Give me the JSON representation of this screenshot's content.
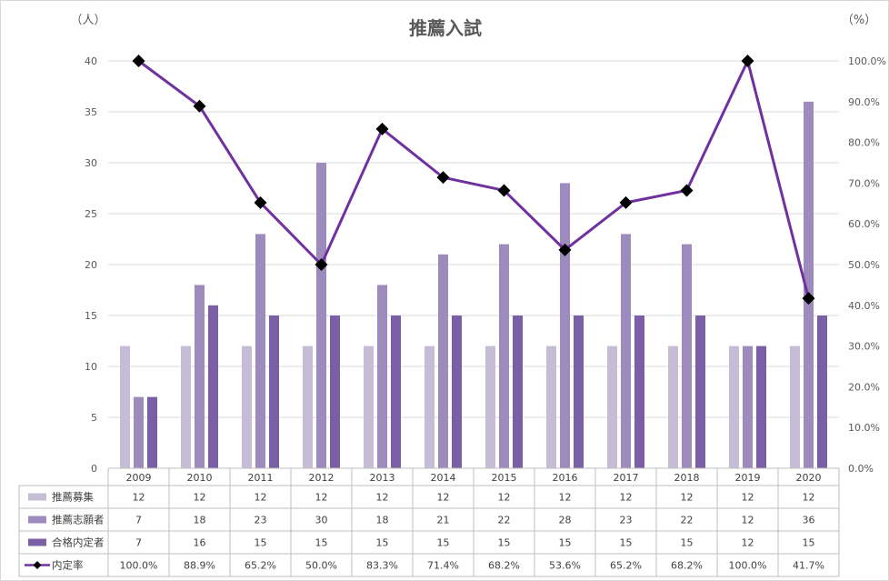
{
  "chart_data": {
    "type": "bar",
    "title": "推薦入試",
    "left_axis_unit": "（人）",
    "right_axis_unit": "（%）",
    "categories": [
      "2009",
      "2010",
      "2011",
      "2012",
      "2013",
      "2014",
      "2015",
      "2016",
      "2017",
      "2018",
      "2019",
      "2020"
    ],
    "ylim": [
      0,
      40
    ],
    "y_ticks": [
      "0",
      "5",
      "10",
      "15",
      "20",
      "25",
      "30",
      "35",
      "40"
    ],
    "y2lim": [
      0,
      100
    ],
    "y2_ticks": [
      "0.0%",
      "10.0%",
      "20.0%",
      "30.0%",
      "40.0%",
      "50.0%",
      "60.0%",
      "70.0%",
      "80.0%",
      "90.0%",
      "100.0%"
    ],
    "grid": true,
    "legend": "data-table",
    "series": [
      {
        "name": "推薦募集",
        "kind": "bar",
        "axis": "left",
        "color": "#c6bcd6",
        "values": [
          12,
          12,
          12,
          12,
          12,
          12,
          12,
          12,
          12,
          12,
          12,
          12
        ],
        "labels": [
          "12",
          "12",
          "12",
          "12",
          "12",
          "12",
          "12",
          "12",
          "12",
          "12",
          "12",
          "12"
        ]
      },
      {
        "name": "推薦志願者",
        "kind": "bar",
        "axis": "left",
        "color": "#9e8bbd",
        "values": [
          7,
          18,
          23,
          30,
          18,
          21,
          22,
          28,
          23,
          22,
          12,
          36
        ],
        "labels": [
          "7",
          "18",
          "23",
          "30",
          "18",
          "21",
          "22",
          "28",
          "23",
          "22",
          "12",
          "36"
        ]
      },
      {
        "name": "合格内定者",
        "kind": "bar",
        "axis": "left",
        "color": "#7a5fa6",
        "values": [
          7,
          16,
          15,
          15,
          15,
          15,
          15,
          15,
          15,
          15,
          12,
          15
        ],
        "labels": [
          "7",
          "16",
          "15",
          "15",
          "15",
          "15",
          "15",
          "15",
          "15",
          "15",
          "12",
          "15"
        ]
      },
      {
        "name": "内定率",
        "kind": "line",
        "axis": "right",
        "color": "#7030a0",
        "marker_color": "#000000",
        "values": [
          100.0,
          88.9,
          65.2,
          50.0,
          83.3,
          71.4,
          68.2,
          53.6,
          65.2,
          68.2,
          100.0,
          41.7
        ],
        "labels": [
          "100.0%",
          "88.9%",
          "65.2%",
          "50.0%",
          "83.3%",
          "71.4%",
          "68.2%",
          "53.6%",
          "65.2%",
          "68.2%",
          "100.0%",
          "41.7%"
        ]
      }
    ]
  }
}
